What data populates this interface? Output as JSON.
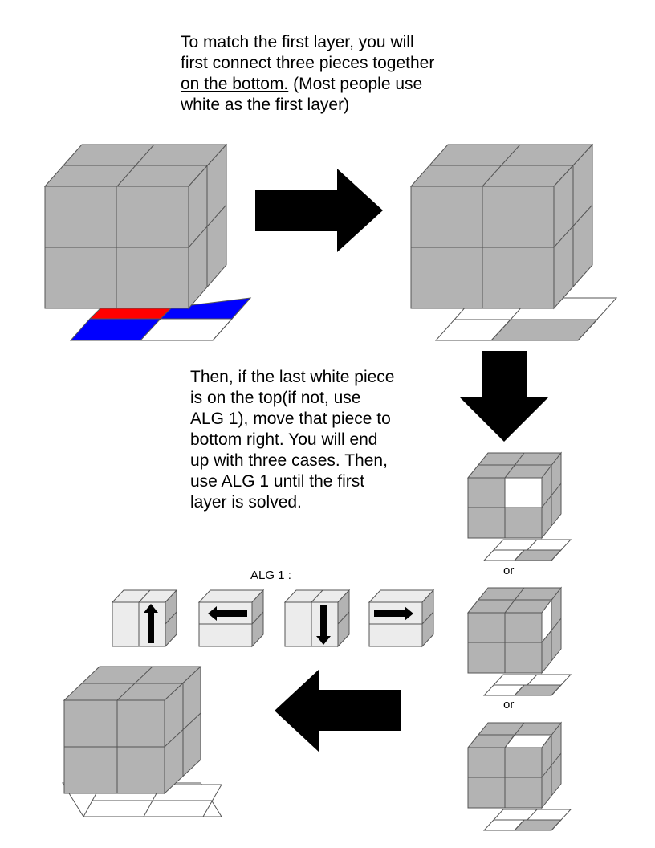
{
  "intro": {
    "line1": "To match the first layer, you will",
    "line2": "first connect three pieces together",
    "line3_underlined": "on the bottom.",
    "line3_rest": " (Most people use",
    "line4": "white as the first layer)"
  },
  "step2": {
    "lines": [
      "Then, if the last white piece",
      "is on the top(if not, use",
      "ALG 1), move that piece to",
      "bottom right. You will end",
      "up with three cases. Then,",
      "use ALG 1 until the first",
      "layer is solved."
    ]
  },
  "alg_label": "ALG 1 :",
  "or_labels": [
    "or",
    "or"
  ],
  "colors": {
    "cube_face": "#b3b3b3",
    "cube_light": "#ececec",
    "red": "#ff0000",
    "blue": "#0000ff",
    "white": "#ffffff",
    "arrow": "#000000"
  }
}
